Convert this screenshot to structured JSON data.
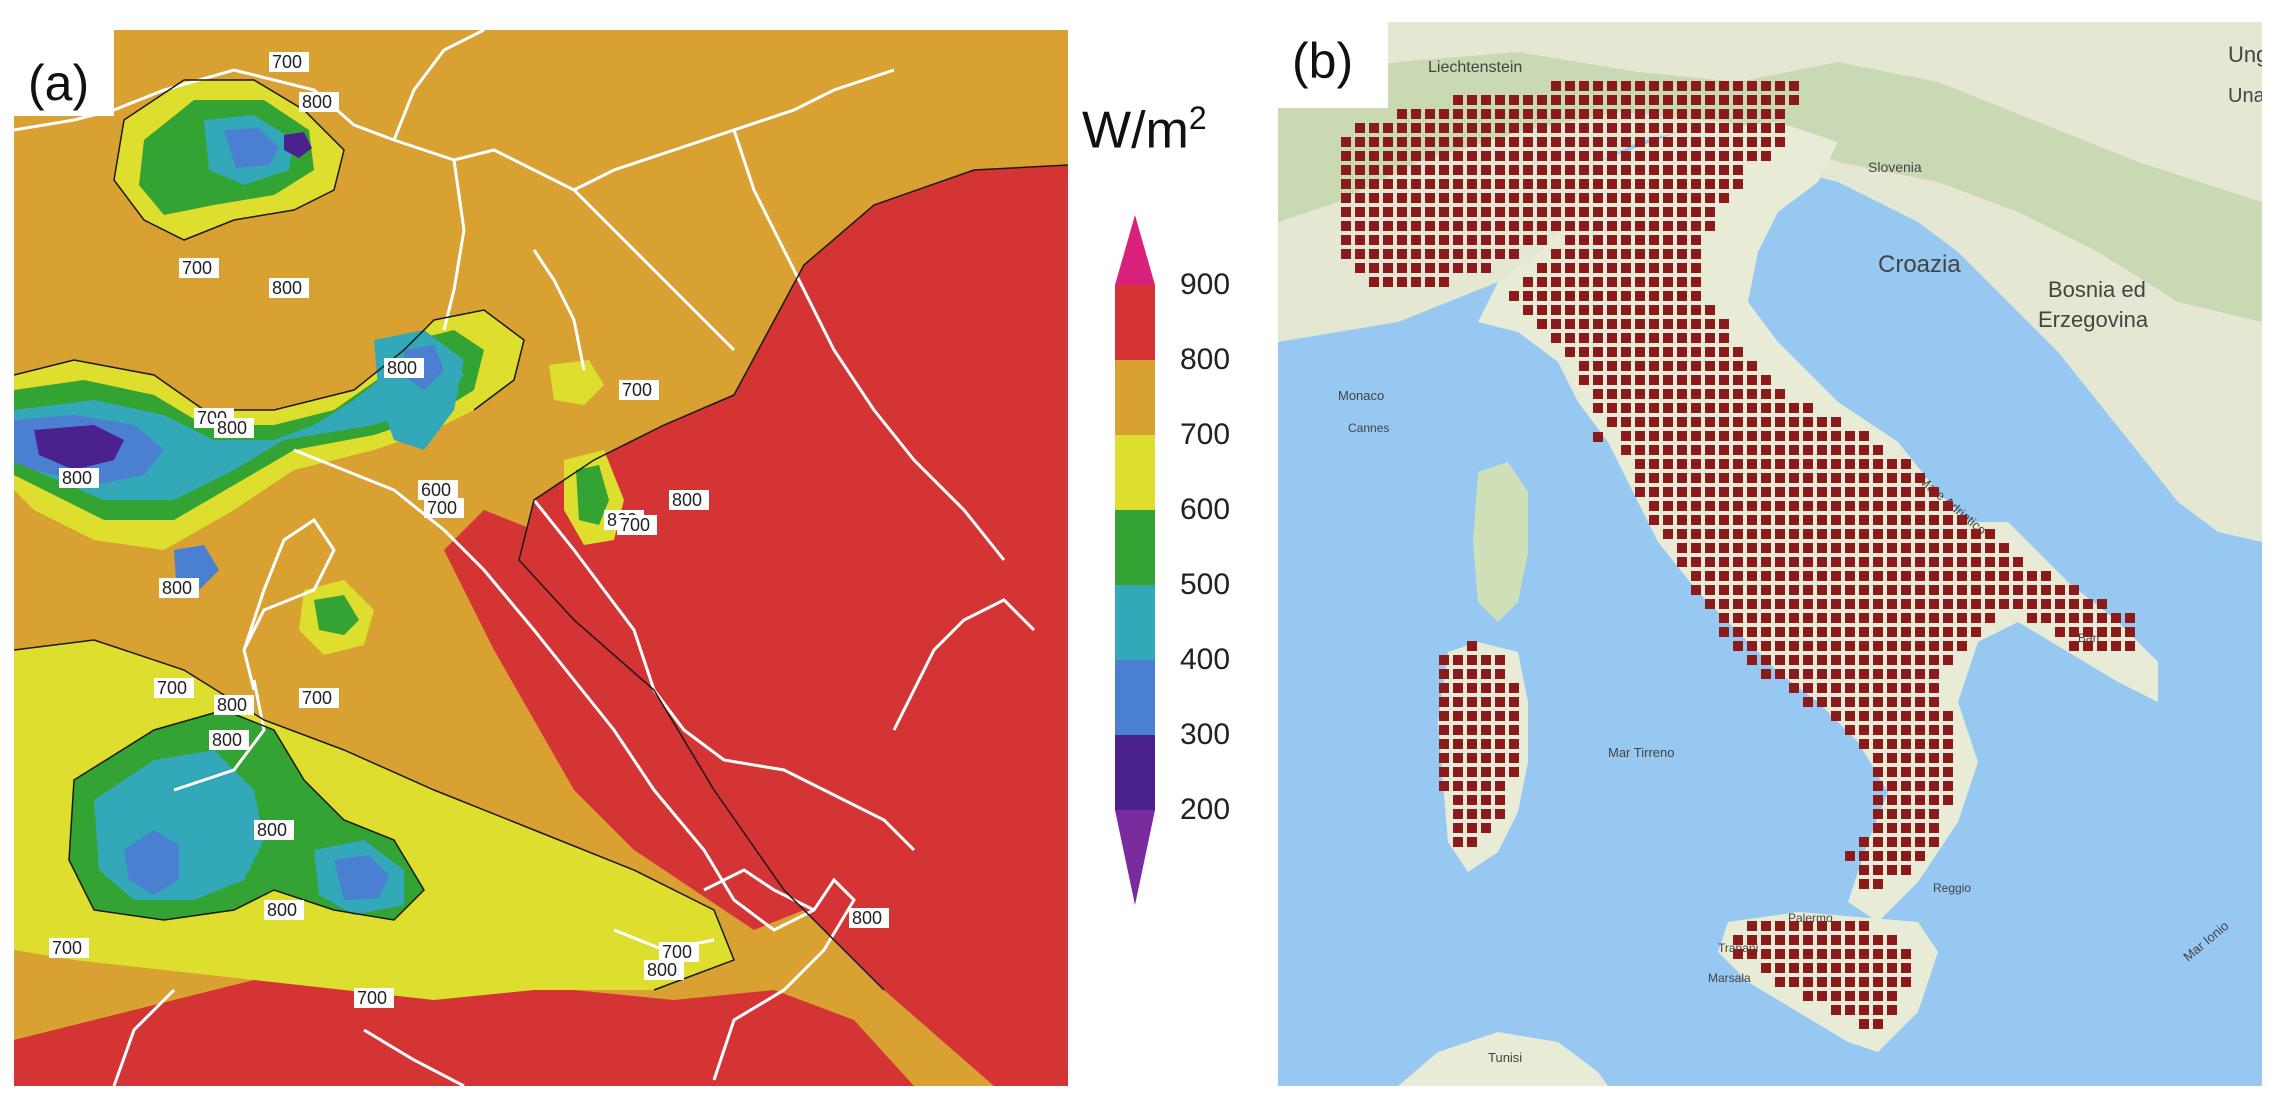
{
  "panel_a": {
    "label": "(a)",
    "unit_main": "W/m",
    "unit_sup": "2",
    "colorbar": {
      "ticks": [
        "900",
        "800",
        "700",
        "600",
        "500",
        "400",
        "300",
        "200"
      ],
      "colors": [
        "#d9217c",
        "#d43434",
        "#d9a032",
        "#dede2e",
        "#33a333",
        "#33a8b8",
        "#4a7fd1",
        "#4b2190",
        "#7a2b9e"
      ]
    },
    "contour_labels": [
      "700",
      "800",
      "700",
      "700",
      "800",
      "800",
      "800",
      "700",
      "600",
      "800",
      "800",
      "700",
      "800",
      "700",
      "700",
      "800",
      "700",
      "800",
      "800",
      "800",
      "800",
      "700",
      "700",
      "800",
      "700",
      "800"
    ]
  },
  "panel_b": {
    "label": "(b)",
    "place_names": [
      "Liechtenstein",
      "Slovenia",
      "Croazia",
      "Bosnia ed",
      "Erzegovina",
      "Mare Adriatico",
      "Mar Tirreno",
      "Mar Ionio",
      "Monaco",
      "Cannes",
      "Tunisi",
      "Palermo",
      "Trapani",
      "Marsala",
      "Bari",
      "Reggio",
      "Una",
      "Ung"
    ],
    "grid_color": "#8b1a1a",
    "land_color": "#e8ecd6",
    "sea_color": "#96c8f2"
  }
}
